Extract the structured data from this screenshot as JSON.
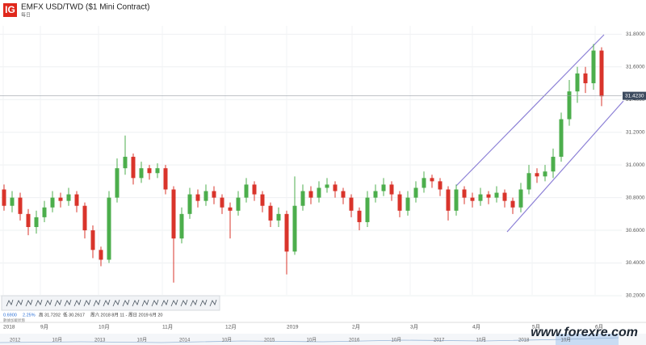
{
  "header": {
    "logo": "IG",
    "title": "EMFX USD/TWD ($1 Mini Contract)",
    "subtitle": "每日"
  },
  "chart_data": {
    "type": "candlestick",
    "open": [
      30.85,
      30.75,
      30.8,
      30.7,
      30.62,
      30.68,
      30.74,
      30.8,
      30.78,
      30.82,
      30.75,
      30.6,
      30.48,
      30.42,
      30.8,
      30.98,
      31.05,
      30.92,
      30.98,
      30.95,
      30.98,
      30.85,
      30.55,
      30.7,
      30.82,
      30.78,
      30.84,
      30.8,
      30.74,
      30.72,
      30.8,
      30.88,
      30.82,
      30.75,
      30.66,
      30.7,
      30.47,
      30.75,
      30.84,
      30.8,
      30.86,
      30.88,
      30.84,
      30.8,
      30.72,
      30.65,
      30.8,
      30.84,
      30.88,
      30.82,
      30.72,
      30.8,
      30.86,
      30.92,
      30.9,
      30.85,
      30.72,
      30.85,
      30.8,
      30.78,
      30.82,
      30.8,
      30.83,
      30.78,
      30.74,
      30.85,
      30.95,
      30.93,
      30.96,
      31.05,
      31.28,
      31.45,
      31.56,
      31.5,
      31.7
    ],
    "high": [
      30.88,
      30.84,
      30.83,
      30.73,
      30.72,
      30.78,
      30.84,
      30.83,
      30.86,
      30.84,
      30.77,
      30.63,
      30.5,
      30.84,
      31.04,
      31.18,
      31.07,
      31.02,
      31.0,
      31.01,
      31.0,
      30.87,
      30.74,
      30.86,
      30.85,
      30.88,
      30.87,
      30.82,
      30.77,
      30.84,
      30.92,
      30.9,
      30.84,
      30.77,
      30.74,
      30.72,
      30.93,
      30.88,
      30.87,
      30.9,
      30.92,
      30.9,
      30.86,
      30.82,
      30.74,
      30.84,
      30.88,
      30.92,
      30.9,
      30.84,
      30.84,
      30.9,
      30.96,
      30.94,
      30.92,
      30.87,
      30.88,
      30.87,
      30.83,
      30.86,
      30.84,
      30.87,
      30.85,
      30.8,
      30.89,
      31.0,
      30.98,
      31.0,
      31.1,
      31.32,
      31.52,
      31.6,
      31.6,
      31.74,
      31.72
    ],
    "low": [
      30.72,
      30.71,
      30.66,
      30.57,
      30.58,
      30.65,
      30.71,
      30.74,
      30.75,
      30.71,
      30.55,
      30.43,
      30.38,
      30.4,
      30.77,
      30.94,
      30.88,
      30.89,
      30.91,
      30.92,
      30.82,
      30.28,
      30.52,
      30.67,
      30.74,
      30.75,
      30.76,
      30.7,
      30.55,
      30.69,
      30.77,
      30.78,
      30.71,
      30.62,
      30.62,
      30.33,
      30.45,
      30.72,
      30.76,
      30.77,
      30.83,
      30.8,
      30.76,
      30.68,
      30.6,
      30.62,
      30.77,
      30.81,
      30.78,
      30.68,
      30.69,
      30.77,
      30.83,
      30.86,
      30.81,
      30.66,
      30.69,
      30.76,
      30.74,
      30.75,
      30.76,
      30.77,
      30.74,
      30.7,
      30.71,
      30.82,
      30.89,
      30.9,
      30.92,
      31.02,
      31.24,
      31.38,
      31.44,
      31.46,
      31.36
    ],
    "close": [
      30.75,
      30.8,
      30.7,
      30.62,
      30.68,
      30.74,
      30.8,
      30.78,
      30.82,
      30.75,
      30.6,
      30.48,
      30.42,
      30.8,
      30.98,
      31.05,
      30.92,
      30.98,
      30.95,
      30.98,
      30.85,
      30.55,
      30.7,
      30.82,
      30.78,
      30.84,
      30.8,
      30.74,
      30.72,
      30.8,
      30.88,
      30.82,
      30.75,
      30.66,
      30.7,
      30.47,
      30.75,
      30.84,
      30.8,
      30.86,
      30.88,
      30.84,
      30.8,
      30.72,
      30.65,
      30.8,
      30.84,
      30.88,
      30.82,
      30.72,
      30.8,
      30.86,
      30.92,
      30.9,
      30.85,
      30.72,
      30.85,
      30.8,
      30.78,
      30.82,
      30.8,
      30.83,
      30.78,
      30.74,
      30.85,
      30.95,
      30.93,
      30.96,
      31.05,
      31.28,
      31.45,
      31.56,
      31.5,
      31.7,
      31.42
    ],
    "up_color": "#4cae4c",
    "down_color": "#d9342b",
    "ylim": [
      30.1306,
      31.9006
    ],
    "yticks": [
      {
        "value": 30.2,
        "label": "30.2000"
      },
      {
        "value": 30.4,
        "label": "30.4000"
      },
      {
        "value": 30.6,
        "label": "30.6000"
      },
      {
        "value": 30.8,
        "label": "30.8000"
      },
      {
        "value": 31.0,
        "label": "31.0000"
      },
      {
        "value": 31.2,
        "label": "31.2000"
      },
      {
        "value": 31.4,
        "label": "31.4000"
      },
      {
        "value": 31.6,
        "label": "31.6000"
      },
      {
        "value": 31.8,
        "label": "31.8000"
      }
    ],
    "xlim": [
      -0.5,
      76.5
    ],
    "xticks": [
      {
        "value": -0.1,
        "label": "2018"
      },
      {
        "value": 4.5,
        "label": "9月"
      },
      {
        "value": 11.7,
        "label": "10月"
      },
      {
        "value": 19.6,
        "label": "11月"
      },
      {
        "value": 27.4,
        "label": "12月"
      },
      {
        "value": 35,
        "label": "2019"
      },
      {
        "value": 43.1,
        "label": "2月"
      },
      {
        "value": 50.3,
        "label": "3月"
      },
      {
        "value": 58,
        "label": "4月"
      },
      {
        "value": 65.4,
        "label": "5月"
      },
      {
        "value": 73.2,
        "label": "6月"
      }
    ],
    "last_price": {
      "value": 31.423,
      "label": "31.4230"
    },
    "grid": true
  },
  "info": {
    "change": "0.6900",
    "change_pct": "2.25%",
    "high": "高 31.7202",
    "low": "低 30.2617",
    "range": "周六 2018 8月 11 - 周日 2019 6月 20",
    "status": "數據加載狀態"
  },
  "navigator": {
    "labels": [
      "2012",
      "10月",
      "2013",
      "10月",
      "2014",
      "10月",
      "2015",
      "10月",
      "2016",
      "10月",
      "2017",
      "10月",
      "2018",
      "10月"
    ]
  },
  "watermark": "www.forexre.com"
}
